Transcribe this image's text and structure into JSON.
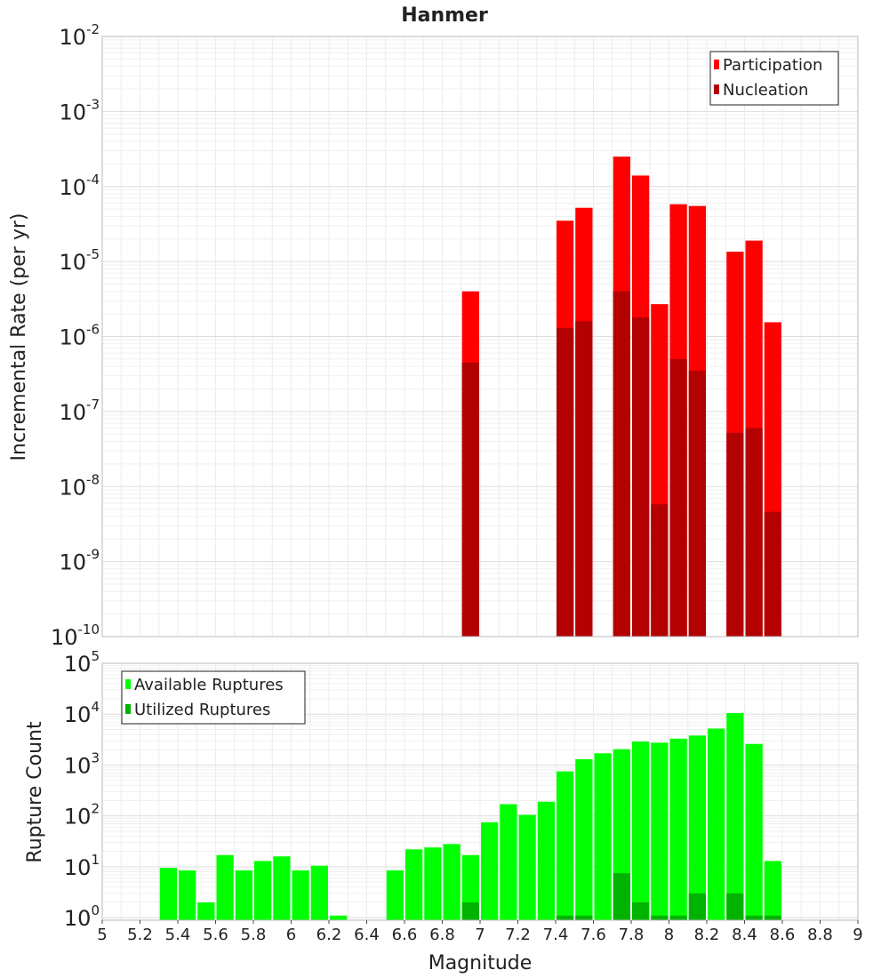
{
  "chart_data": [
    {
      "type": "bar",
      "title": "Hanmer",
      "xlabel": "",
      "ylabel": "Incremental Rate (per yr)",
      "yscale": "log",
      "ylim_exp": [
        -10,
        -2
      ],
      "xlim": [
        5,
        9
      ],
      "bin_width": 0.1,
      "grid": true,
      "legend_location": "top-right",
      "tick_base": "10",
      "tick_exponents": [
        "-2",
        "-3",
        "-4",
        "-5",
        "-6",
        "-7",
        "-8",
        "-9",
        "-10"
      ],
      "series": [
        {
          "name": "Participation",
          "color": "#ff0000",
          "points": [
            [
              6.95,
              4e-06
            ],
            [
              7.45,
              3.5e-05
            ],
            [
              7.55,
              5.2e-05
            ],
            [
              7.75,
              0.00025
            ],
            [
              7.85,
              0.00014
            ],
            [
              7.95,
              2.7e-06
            ],
            [
              8.05,
              5.8e-05
            ],
            [
              8.15,
              5.5e-05
            ],
            [
              8.35,
              1.35e-05
            ],
            [
              8.45,
              1.9e-05
            ],
            [
              8.55,
              1.55e-06
            ]
          ]
        },
        {
          "name": "Nucleation",
          "color": "#b30000",
          "points": [
            [
              6.95,
              4.5e-07
            ],
            [
              7.45,
              1.3e-06
            ],
            [
              7.55,
              1.6e-06
            ],
            [
              7.75,
              4e-06
            ],
            [
              7.85,
              1.8e-06
            ],
            [
              7.95,
              5.8e-09
            ],
            [
              8.05,
              5e-07
            ],
            [
              8.15,
              3.5e-07
            ],
            [
              8.35,
              5.2e-08
            ],
            [
              8.45,
              6e-08
            ],
            [
              8.55,
              4.6e-09
            ]
          ]
        }
      ]
    },
    {
      "type": "bar",
      "title": "",
      "xlabel": "Magnitude",
      "ylabel": "Rupture Count",
      "yscale": "log",
      "ylim_exp": [
        -0.05,
        5
      ],
      "xlim": [
        5,
        9
      ],
      "bin_width": 0.1,
      "grid": true,
      "legend_location": "top-left",
      "tick_base": "10",
      "tick_exponents": [
        "5",
        "4",
        "3",
        "2",
        "1",
        "0"
      ],
      "x_tick_labels": [
        "5",
        "5.2",
        "5.4",
        "5.6",
        "5.8",
        "6",
        "6.2",
        "6.4",
        "6.6",
        "6.8",
        "7",
        "7.2",
        "7.4",
        "7.6",
        "7.8",
        "8",
        "8.2",
        "8.4",
        "8.6",
        "8.8",
        "9"
      ],
      "series": [
        {
          "name": "Available Ruptures",
          "color": "#00ff00",
          "points": [
            [
              5.35,
              9.5
            ],
            [
              5.45,
              8.5
            ],
            [
              5.55,
              2.0
            ],
            [
              5.65,
              17
            ],
            [
              5.75,
              8.5
            ],
            [
              5.85,
              13
            ],
            [
              5.95,
              16
            ],
            [
              6.05,
              8.5
            ],
            [
              6.15,
              10.5
            ],
            [
              6.25,
              1.1
            ],
            [
              6.55,
              8.5
            ],
            [
              6.65,
              22
            ],
            [
              6.75,
              24
            ],
            [
              6.85,
              28
            ],
            [
              6.95,
              17
            ],
            [
              7.05,
              75
            ],
            [
              7.15,
              170
            ],
            [
              7.25,
              105
            ],
            [
              7.35,
              190
            ],
            [
              7.45,
              750
            ],
            [
              7.55,
              1300
            ],
            [
              7.65,
              1700
            ],
            [
              7.75,
              2050
            ],
            [
              7.85,
              2900
            ],
            [
              7.95,
              2750
            ],
            [
              8.05,
              3300
            ],
            [
              8.15,
              3800
            ],
            [
              8.25,
              5200
            ],
            [
              8.35,
              10500
            ],
            [
              8.45,
              2600
            ],
            [
              8.55,
              13
            ]
          ]
        },
        {
          "name": "Utilized Ruptures",
          "color": "#00b300",
          "points": [
            [
              6.95,
              2.0
            ],
            [
              7.45,
              1.1
            ],
            [
              7.55,
              1.1
            ],
            [
              7.75,
              7.5
            ],
            [
              7.85,
              2.0
            ],
            [
              7.95,
              1.1
            ],
            [
              8.05,
              1.1
            ],
            [
              8.15,
              3.0
            ],
            [
              8.35,
              3.0
            ],
            [
              8.45,
              1.1
            ],
            [
              8.55,
              1.1
            ]
          ]
        }
      ]
    }
  ]
}
